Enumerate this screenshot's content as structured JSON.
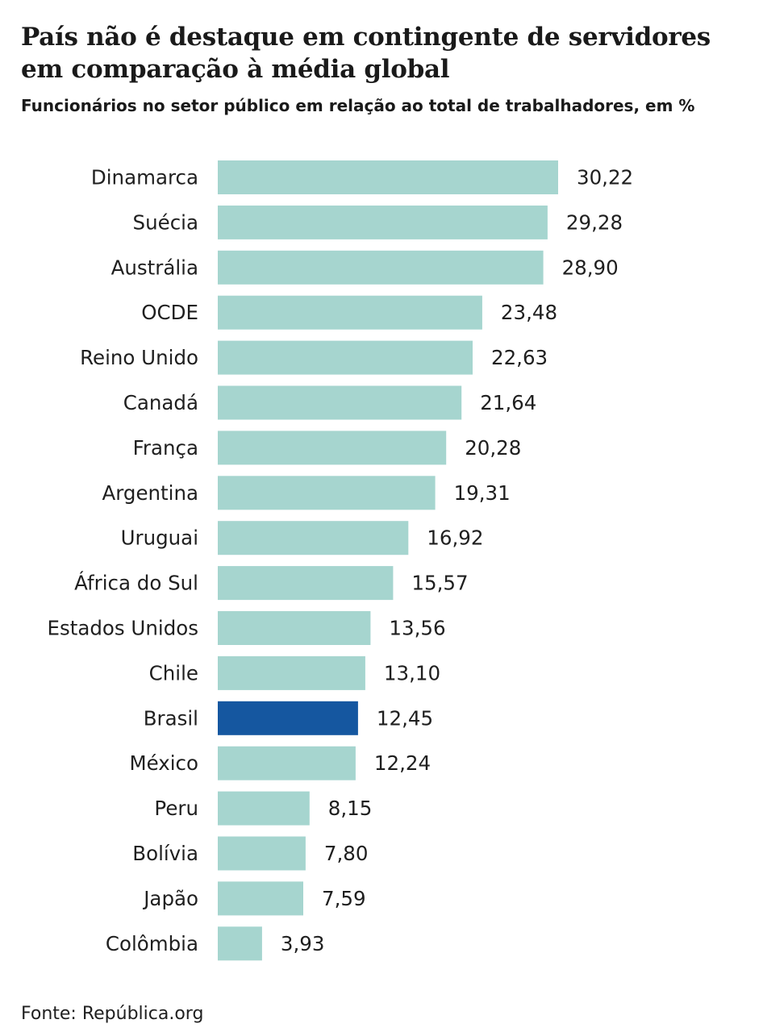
{
  "title": "País não é destaque em contingente de servidores em comparação à média global",
  "subtitle": "Funcionários no setor público em relação ao total de trabalhadores, em %",
  "source": "Fonte: República.org",
  "colors": {
    "default_bar": "#a6d5cf",
    "highlight_bar": "#1557a0"
  },
  "chart_data": {
    "type": "bar",
    "orientation": "horizontal",
    "title": "País não é destaque em contingente de servidores em comparação à média global",
    "subtitle": "Funcionários no setor público em relação ao total de trabalhadores, em %",
    "xlabel": "",
    "ylabel": "",
    "xlim": [
      0,
      30.22
    ],
    "grid": false,
    "legend": "none",
    "highlight": "Brasil",
    "categories": [
      "Dinamarca",
      "Suécia",
      "Austrália",
      "OCDE",
      "Reino Unido",
      "Canadá",
      "França",
      "Argentina",
      "Uruguai",
      "África do Sul",
      "Estados Unidos",
      "Chile",
      "Brasil",
      "México",
      "Peru",
      "Bolívia",
      "Japão",
      "Colômbia"
    ],
    "values": [
      30.22,
      29.28,
      28.9,
      23.48,
      22.63,
      21.64,
      20.28,
      19.31,
      16.92,
      15.57,
      13.56,
      13.1,
      12.45,
      12.24,
      8.15,
      7.8,
      7.59,
      3.93
    ],
    "value_labels": [
      "30,22",
      "29,28",
      "28,90",
      "23,48",
      "22,63",
      "21,64",
      "20,28",
      "19,31",
      "16,92",
      "15,57",
      "13,56",
      "13,10",
      "12,45",
      "12,24",
      "8,15",
      "7,80",
      "7,59",
      "3,93"
    ]
  }
}
